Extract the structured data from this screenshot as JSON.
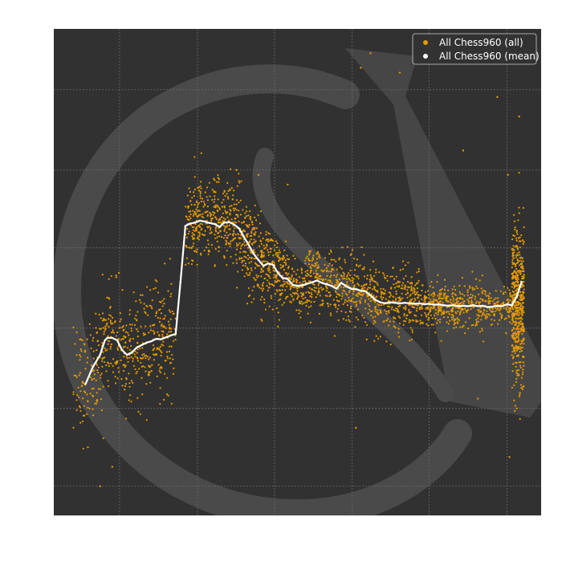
{
  "chart_data": {
    "type": "scatter",
    "title": "",
    "xlabel": "",
    "ylabel": "",
    "xlim": [
      0,
      100
    ],
    "ylim": [
      0,
      100
    ],
    "grid": true,
    "legend_position": "top-right",
    "colors": {
      "background": "#313131",
      "grid": "#6a6a6a",
      "watermark": "#4a4a4a",
      "all": "#e69a00",
      "mean": "#ffffff"
    },
    "series": [
      {
        "name": "All Chess960 (all)",
        "kind": "scatter",
        "clusters": [
          {
            "x": [
              4,
              10
            ],
            "y_center": 23,
            "y_spread": 10,
            "count": 120
          },
          {
            "x": [
              10,
              25
            ],
            "y_center": 35,
            "y_spread": 10,
            "count": 380
          },
          {
            "x": [
              27,
              45
            ],
            "y_center": 60,
            "y_spread": 8,
            "count": 650
          },
          {
            "x": [
              45,
              75
            ],
            "y_center": 45,
            "y_spread": 6,
            "count": 900
          },
          {
            "x": [
              75,
              94
            ],
            "y_center": 43,
            "y_spread": 4,
            "count": 520
          },
          {
            "x": [
              94,
              96.5
            ],
            "y_center": 43,
            "y_spread": 14,
            "count": 520
          }
        ]
      },
      {
        "name": "All Chess960 (mean)",
        "kind": "line",
        "x": [
          6.5,
          8,
          9.5,
          10.5,
          11,
          12,
          13,
          14,
          15,
          16,
          17,
          18,
          19,
          20,
          21,
          22,
          23,
          24,
          25,
          26,
          27,
          28,
          29,
          30,
          31,
          32,
          33,
          34,
          35,
          36,
          37,
          38,
          39,
          40,
          41,
          42,
          43,
          44,
          45,
          46,
          47,
          48,
          49,
          50,
          51,
          52,
          53,
          54,
          55,
          56,
          57,
          58,
          59,
          60,
          61,
          62,
          63,
          64,
          65,
          66,
          67,
          68,
          69,
          70,
          71,
          72,
          73,
          74,
          75,
          76,
          77,
          78,
          79,
          80,
          81,
          82,
          83,
          84,
          85,
          86,
          87,
          88,
          89,
          90,
          91,
          92,
          93,
          94,
          95,
          95.5,
          96
        ],
        "y": [
          27,
          30.5,
          33,
          36,
          36.5,
          36.5,
          36,
          34,
          33,
          33.5,
          34.5,
          35,
          35.5,
          35.8,
          36.3,
          36.2,
          36.6,
          37,
          37.3,
          48,
          59.5,
          60,
          60.2,
          60.6,
          60.4,
          60.1,
          59.9,
          59.3,
          60.2,
          60.3,
          59.8,
          59,
          57.3,
          55.6,
          53.8,
          52.5,
          51.3,
          51.8,
          51.5,
          49.8,
          48.8,
          48.6,
          47.4,
          47.2,
          47.3,
          47.6,
          47.9,
          48.3,
          47.8,
          47.5,
          47.2,
          46.6,
          47.8,
          47.1,
          46.6,
          46.5,
          46.2,
          46,
          45.2,
          44.3,
          43.8,
          43.6,
          43.8,
          43.7,
          43.6,
          43.7,
          43.6,
          43.5,
          43.6,
          43.4,
          43.5,
          43.3,
          43.4,
          43.2,
          43.1,
          43.2,
          43.0,
          43.1,
          43.0,
          43.2,
          43.0,
          43.1,
          42.8,
          42.9,
          43.1,
          43.0,
          43.4,
          43.2,
          45,
          46.5,
          48
        ]
      }
    ],
    "outliers": [
      {
        "x": 65,
        "y": 95
      },
      {
        "x": 63,
        "y": 92
      },
      {
        "x": 71,
        "y": 91
      },
      {
        "x": 91,
        "y": 86
      },
      {
        "x": 84,
        "y": 75
      },
      {
        "x": 42,
        "y": 70
      },
      {
        "x": 37.5,
        "y": 71
      },
      {
        "x": 48,
        "y": 68
      },
      {
        "x": 12,
        "y": 10
      },
      {
        "x": 9.5,
        "y": 6
      },
      {
        "x": 7,
        "y": 14
      },
      {
        "x": 62,
        "y": 18
      },
      {
        "x": 93.5,
        "y": 12
      },
      {
        "x": 95,
        "y": 22
      },
      {
        "x": 87,
        "y": 24
      },
      {
        "x": 93.2,
        "y": 70
      },
      {
        "x": 95.5,
        "y": 82
      }
    ]
  }
}
